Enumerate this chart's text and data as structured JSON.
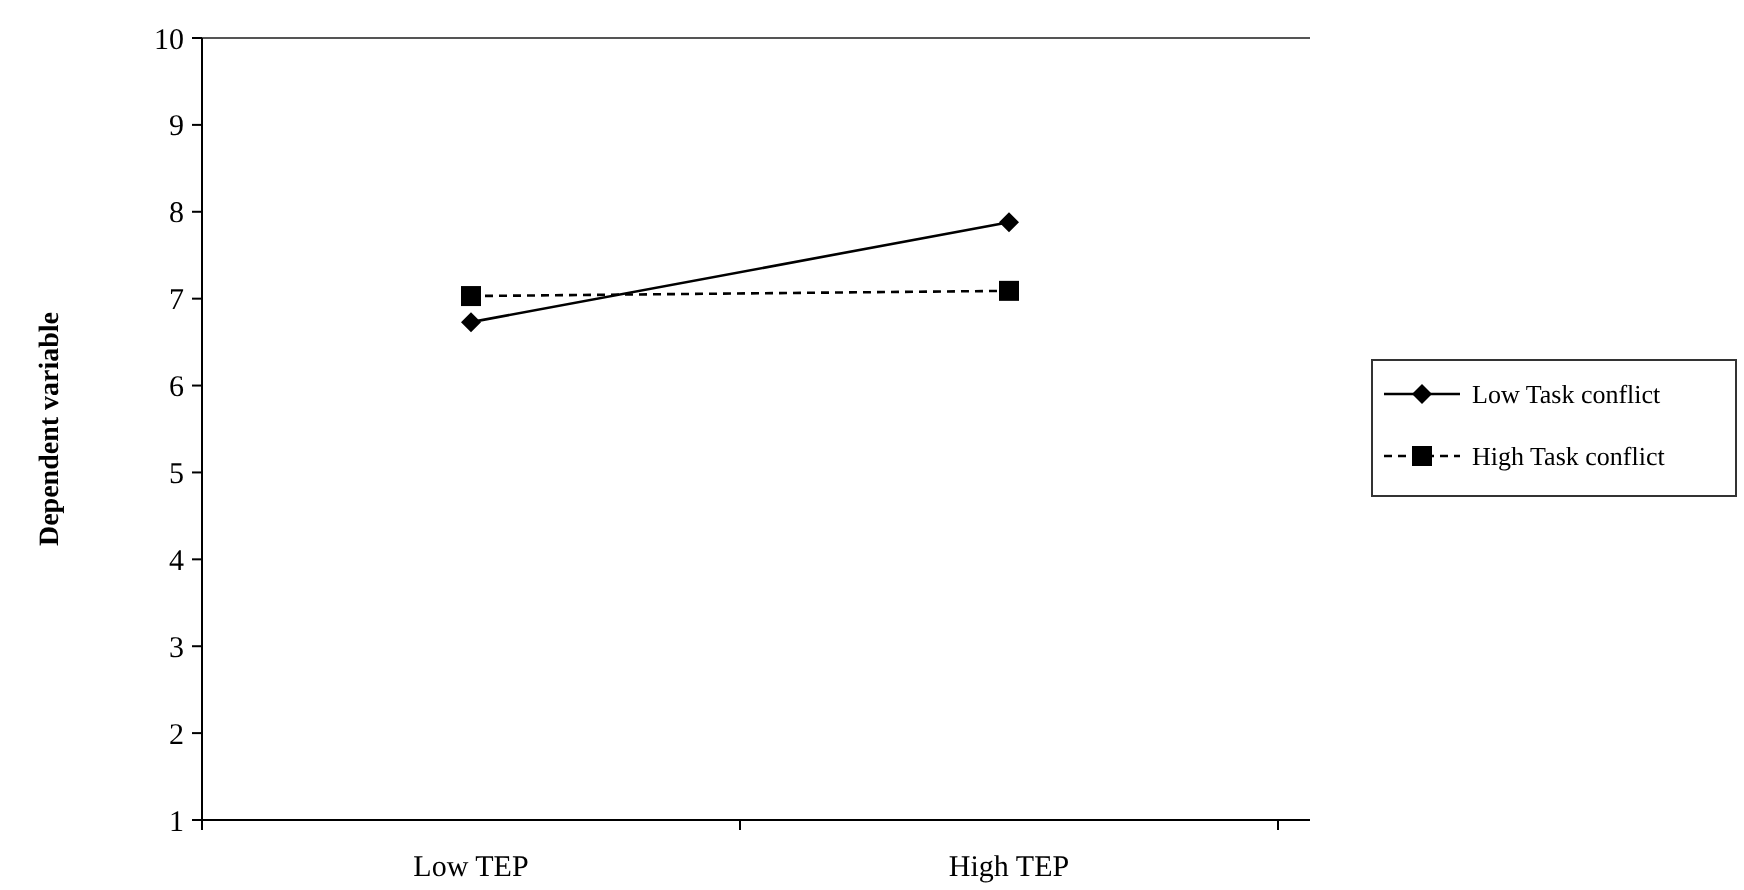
{
  "chart_data": {
    "type": "line",
    "ylabel": "Dependent variable",
    "categories": [
      "Low TEP",
      "High TEP"
    ],
    "series": [
      {
        "name": "Low Task conflict",
        "color": "#000000",
        "values": [
          6.73,
          7.88
        ],
        "marker": "diamond",
        "line_style": "solid"
      },
      {
        "name": "High Task conflict",
        "color": "#000000",
        "values": [
          7.03,
          7.09
        ],
        "marker": "square",
        "line_style": "dashed"
      }
    ],
    "ylim": [
      1,
      10
    ],
    "yticks": [
      1,
      2,
      3,
      4,
      5,
      6,
      7,
      8,
      9,
      10
    ],
    "grid": false,
    "legend": "right"
  }
}
